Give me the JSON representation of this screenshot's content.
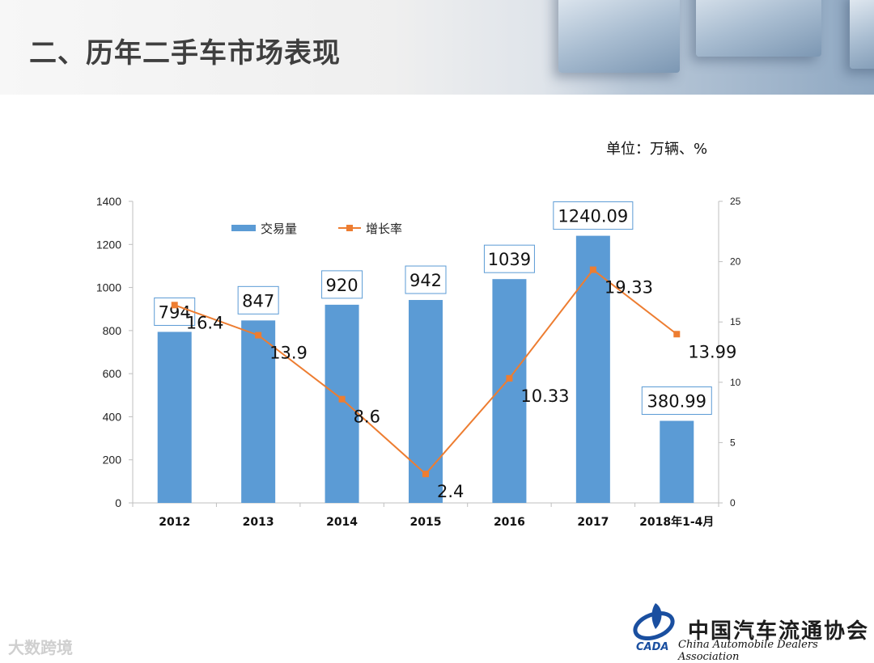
{
  "title": "二、历年二手车市场表现",
  "unit_label": "单位：万辆、%",
  "organization": {
    "name_cn": "中国汽车流通协会",
    "name_en": "China Automobile Dealers Association",
    "logo_text": "CADA"
  },
  "watermark": "大数跨境",
  "chart_data": {
    "type": "bar",
    "categories": [
      "2012",
      "2013",
      "2014",
      "2015",
      "2016",
      "2017",
      "2018年1-4月"
    ],
    "series": [
      {
        "name": "交易量",
        "type": "bar",
        "axis": "left",
        "color": "#5b9bd5",
        "values": [
          794,
          847,
          920,
          942,
          1039,
          1240.09,
          380.99
        ],
        "labels": [
          "794",
          "847",
          "920",
          "942",
          "1039",
          "1240.09",
          "380.99"
        ]
      },
      {
        "name": "增长率",
        "type": "line",
        "axis": "right",
        "color": "#ed7d31",
        "values": [
          16.4,
          13.9,
          8.6,
          2.4,
          10.33,
          19.33,
          13.99
        ],
        "labels": [
          "16.4",
          "13.9",
          "8.6",
          "2.4",
          "10.33",
          "19.33",
          "13.99"
        ]
      }
    ],
    "y_left": {
      "min": 0,
      "max": 1400,
      "ticks": [
        "0",
        "200",
        "400",
        "600",
        "800",
        "1000",
        "1200",
        "1400"
      ]
    },
    "y_right": {
      "min": 0,
      "max": 25,
      "ticks": [
        "0",
        "5",
        "10",
        "15",
        "20",
        "25"
      ]
    },
    "grid": false,
    "legend_position": "top-left"
  }
}
